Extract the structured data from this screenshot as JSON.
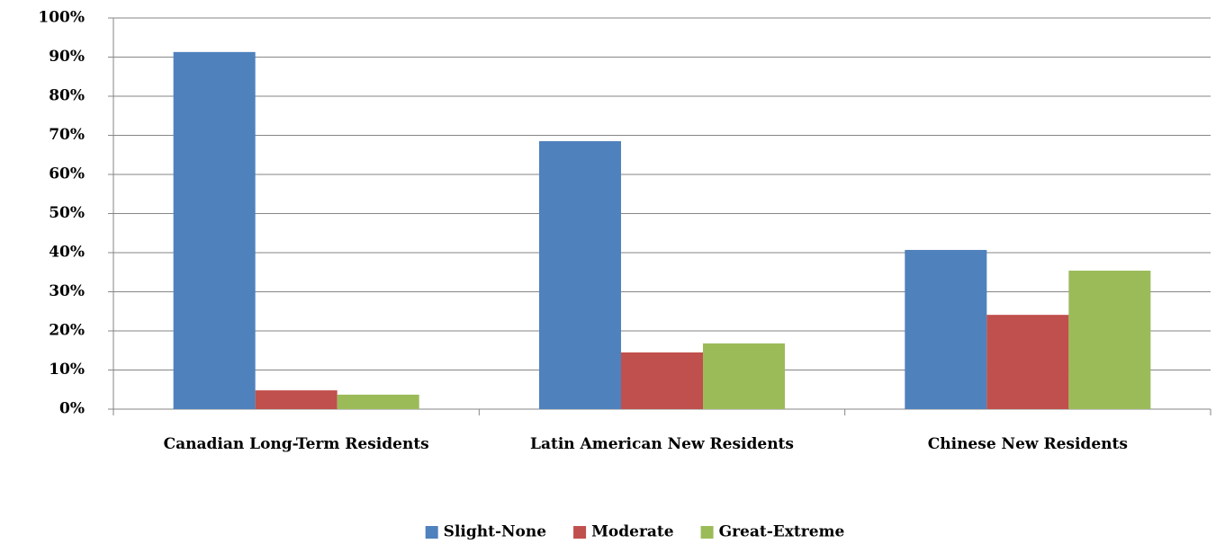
{
  "chart_data": {
    "type": "bar",
    "categories": [
      "Canadian Long-Term Residents",
      "Latin American New Residents",
      "Chinese New Residents"
    ],
    "series": [
      {
        "name": "Slight-None",
        "color": "#4f81bd",
        "values": [
          91.3,
          68.5,
          40.7
        ]
      },
      {
        "name": "Moderate",
        "color": "#c0504d",
        "values": [
          4.8,
          14.5,
          24.1
        ]
      },
      {
        "name": "Great-Extreme",
        "color": "#9bbb59",
        "values": [
          3.7,
          16.8,
          35.4
        ]
      }
    ],
    "ylim": [
      0,
      100
    ],
    "yticks": [
      {
        "value": 0,
        "label": "0%"
      },
      {
        "value": 10,
        "label": "10%"
      },
      {
        "value": 20,
        "label": "20%"
      },
      {
        "value": 30,
        "label": "30%"
      },
      {
        "value": 40,
        "label": "40%"
      },
      {
        "value": 50,
        "label": "50%"
      },
      {
        "value": 60,
        "label": "60%"
      },
      {
        "value": 70,
        "label": "70%"
      },
      {
        "value": 80,
        "label": "80%"
      },
      {
        "value": 90,
        "label": "90%"
      },
      {
        "value": 100,
        "label": "100%"
      }
    ],
    "grid": true,
    "legend": "bottom"
  }
}
